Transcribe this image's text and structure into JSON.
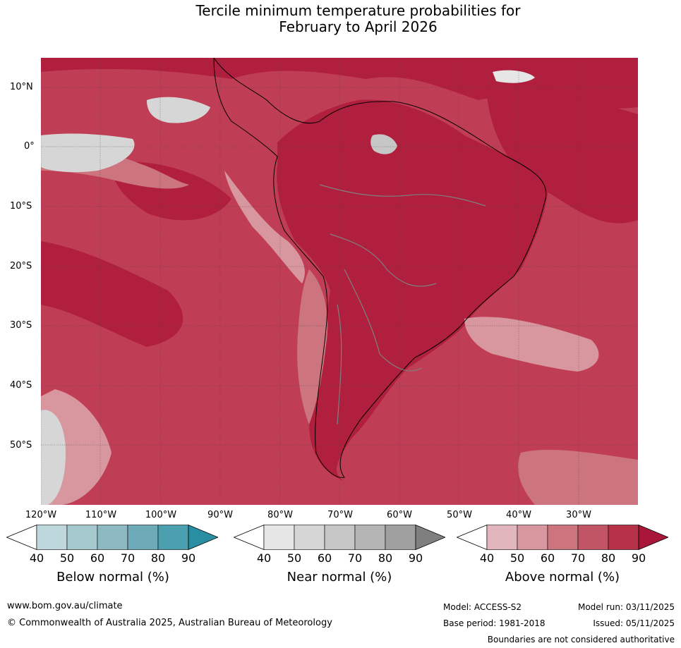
{
  "title_line1": "Tercile minimum temperature probabilities for",
  "title_line2": "February to April 2026",
  "map": {
    "lat_labels": [
      "10°N",
      "0°",
      "10°S",
      "20°S",
      "30°S",
      "40°S",
      "50°S"
    ],
    "lon_labels": [
      "120°W",
      "110°W",
      "100°W",
      "90°W",
      "80°W",
      "70°W",
      "60°W",
      "50°W",
      "40°W",
      "30°W"
    ],
    "dominant_category": "Above normal"
  },
  "colorbars": [
    {
      "title": "Below normal (%)",
      "ticks": [
        "40",
        "50",
        "60",
        "70",
        "80",
        "90"
      ],
      "colors": [
        "#ffffff",
        "#bdd7dd",
        "#a6c8cf",
        "#8db9c3",
        "#6eabb9",
        "#4ba0b0",
        "#2a8ea2"
      ]
    },
    {
      "title": "Near normal (%)",
      "ticks": [
        "40",
        "50",
        "60",
        "70",
        "80",
        "90"
      ],
      "colors": [
        "#ffffff",
        "#e6e6e6",
        "#d6d6d6",
        "#c6c6c6",
        "#b4b4b4",
        "#a0a0a0",
        "#7f7f7f"
      ]
    },
    {
      "title": "Above normal (%)",
      "ticks": [
        "40",
        "50",
        "60",
        "70",
        "80",
        "90"
      ],
      "colors": [
        "#ffffff",
        "#e2b6bd",
        "#d8969f",
        "#cc757f",
        "#c25565",
        "#b73149",
        "#a8163a"
      ]
    }
  ],
  "footer": {
    "website": "www.bom.gov.au/climate",
    "copyright": "© Commonwealth of Australia 2025, Australian Bureau of Meteorology",
    "model": "Model: ACCESS-S2",
    "base_period": "Base period: 1981-2018",
    "model_run": "Model run: 03/11/2025",
    "issued": "Issued: 05/11/2025",
    "disclaimer": "Boundaries are not considered authoritative"
  }
}
